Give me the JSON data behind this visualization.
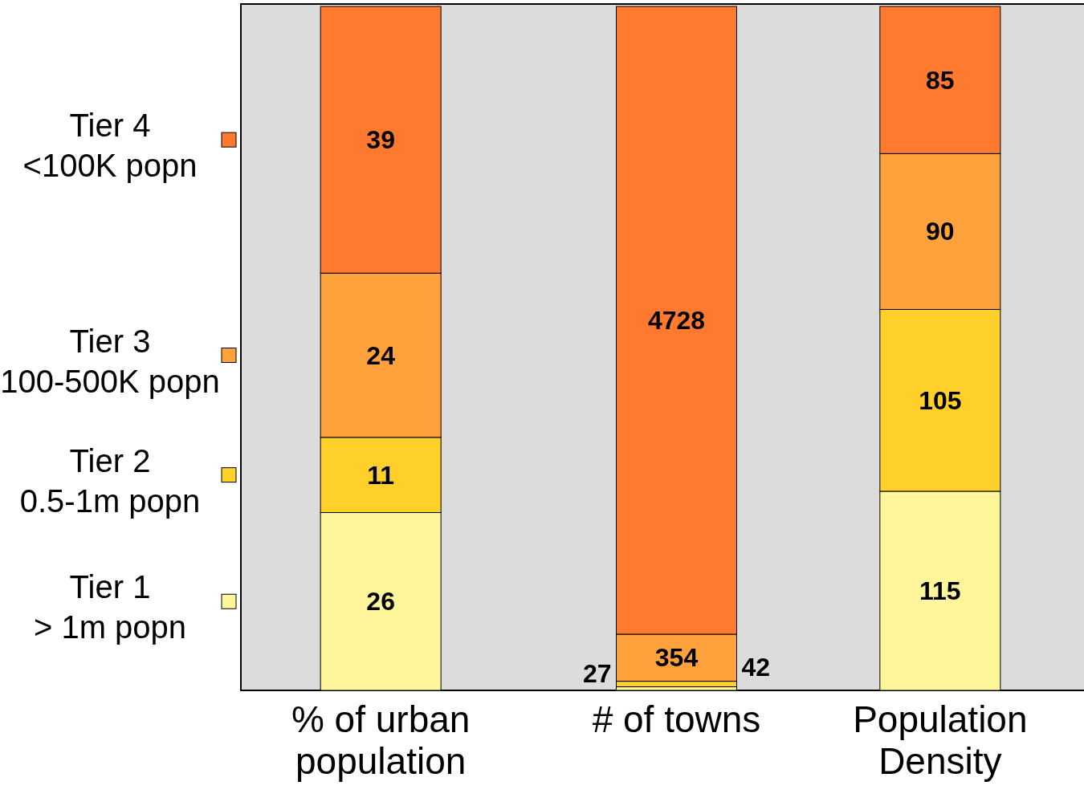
{
  "chart_data": [
    {
      "type": "bar",
      "stacked": true,
      "categories": [
        "% of urban population"
      ],
      "tick_labels": "x",
      "data_labels": true,
      "legend": "left",
      "series": [
        {
          "name": "Tier 1 > 1m popn",
          "color": "#fff59a",
          "values": [
            26
          ]
        },
        {
          "name": "Tier 2 0.5-1m popn",
          "color": "#ffd02a",
          "values": [
            11
          ]
        },
        {
          "name": "Tier 3 100-500K popn",
          "color": "#ffa23c",
          "values": [
            24
          ]
        },
        {
          "name": "Tier 4 <100K popn",
          "color": "#ff7a2e",
          "values": [
            39
          ]
        }
      ]
    },
    {
      "type": "bar",
      "stacked": true,
      "categories": [
        "# of towns"
      ],
      "tick_labels": "x",
      "data_labels": true,
      "series": [
        {
          "color": "#fff59a",
          "values": [
            27
          ]
        },
        {
          "color": "#ffd02a",
          "values": [
            42
          ]
        },
        {
          "color": "#ffa23c",
          "values": [
            354
          ]
        },
        {
          "color": "#ff7a2e",
          "values": [
            4728
          ]
        }
      ]
    },
    {
      "type": "bar",
      "stacked": true,
      "categories": [
        "Population Density"
      ],
      "tick_labels": "x",
      "data_labels": true,
      "series": [
        {
          "color": "#fff59a",
          "values": [
            115
          ]
        },
        {
          "color": "#ffd02a",
          "values": [
            105
          ]
        },
        {
          "color": "#ffa23c",
          "values": [
            90
          ]
        },
        {
          "color": "#ff7a2e",
          "values": [
            85
          ]
        }
      ]
    }
  ]
}
